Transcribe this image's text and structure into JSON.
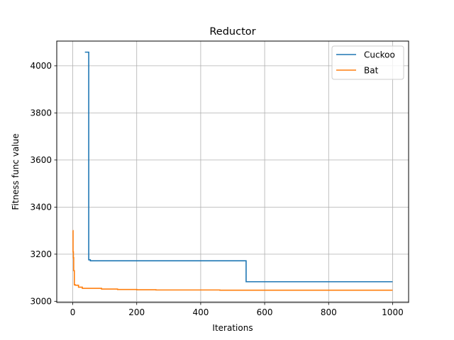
{
  "chart_data": {
    "type": "line",
    "title": "Reductor",
    "xlabel": "Iterations",
    "ylabel": "Fitness func value",
    "xlim": [
      -50,
      1050
    ],
    "ylim": [
      2995,
      4105
    ],
    "xticks": [
      0,
      200,
      400,
      600,
      800,
      1000
    ],
    "yticks": [
      3000,
      3200,
      3400,
      3600,
      3800,
      4000
    ],
    "grid": true,
    "legend_position": "top-right",
    "series": [
      {
        "name": "Cuckoo",
        "color": "#1f77b4",
        "step": true,
        "x": [
          38,
          50,
          55,
          542,
          1000
        ],
        "y": [
          4058,
          3176,
          3172,
          3083,
          3083
        ]
      },
      {
        "name": "Bat",
        "color": "#ff7f0e",
        "step": true,
        "x": [
          0,
          1,
          2,
          3,
          5,
          8,
          18,
          30,
          90,
          140,
          200,
          260,
          460,
          1000
        ],
        "y": [
          3300,
          3210,
          3185,
          3130,
          3070,
          3068,
          3060,
          3055,
          3052,
          3050,
          3049,
          3048,
          3047,
          3047
        ]
      }
    ]
  }
}
